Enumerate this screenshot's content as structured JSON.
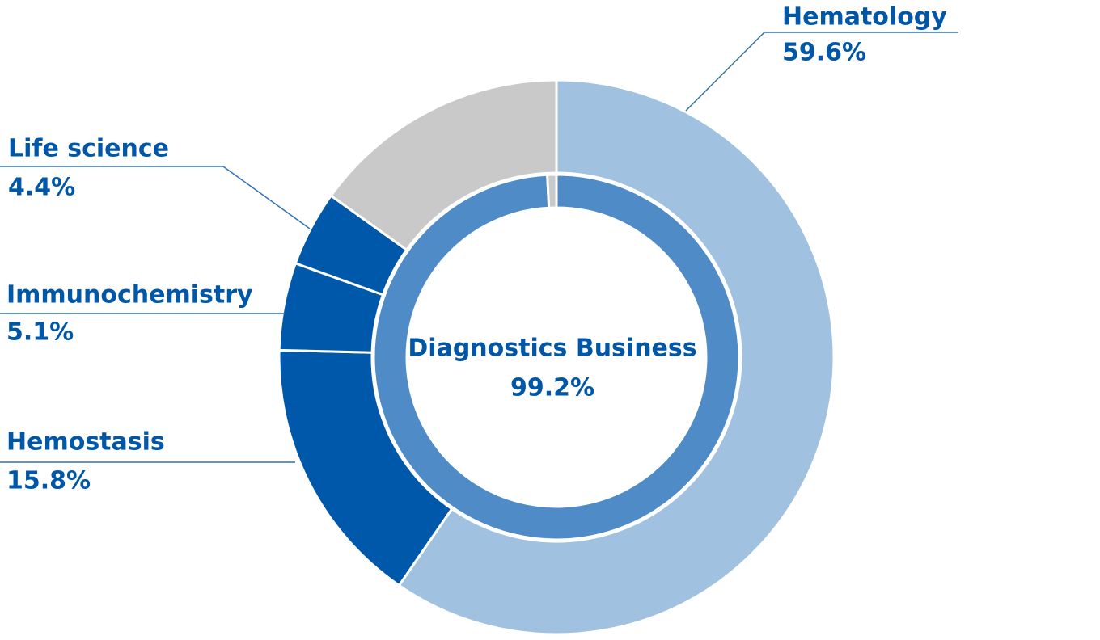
{
  "chart_data": {
    "type": "donut",
    "rings": [
      {
        "categories": [
          "Hematology",
          "Hemostasis",
          "Immunochemistry",
          "Life science",
          null
        ],
        "values": [
          59.6,
          15.8,
          5.1,
          4.4,
          15.1
        ],
        "value_labels": [
          "59.6%",
          "15.8%",
          "5.1%",
          "4.4%",
          null
        ],
        "colors": [
          "#a0c1e0",
          "#0058aa",
          "#0058aa",
          "#0058aa",
          "#c9c9c9"
        ]
      },
      {
        "categories": [
          "Diagnostics Business",
          null
        ],
        "values": [
          99.2,
          0.8
        ],
        "value_labels": [
          "99.2%",
          null
        ],
        "colors": [
          "#4f8bc7",
          "#c9c9c9"
        ]
      }
    ]
  }
}
